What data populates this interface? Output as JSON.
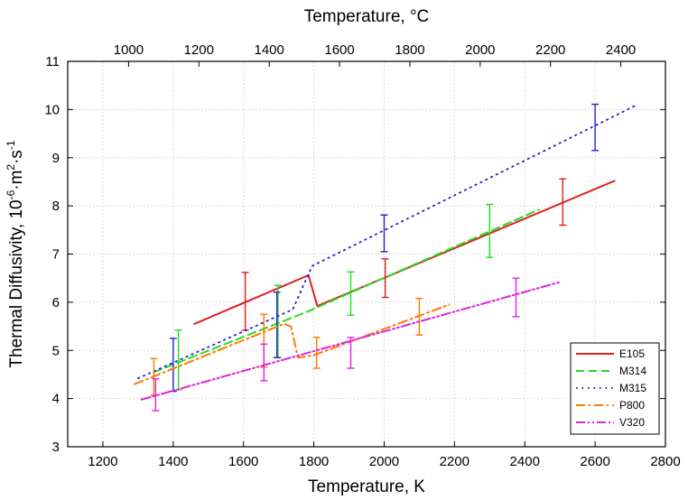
{
  "chart_data": {
    "type": "line",
    "xlabel": "Temperature, K",
    "x2label": "Temperature, °C",
    "ylabel_parts": [
      "Thermal Diffusivity, 10",
      "-6",
      "·m",
      "2",
      "·s",
      "-1"
    ],
    "xlim": [
      1100,
      2800
    ],
    "ylim": [
      3,
      11
    ],
    "x_ticks": [
      1200,
      1400,
      1600,
      1800,
      2000,
      2200,
      2400,
      2600,
      2800
    ],
    "y_ticks": [
      3,
      4,
      5,
      6,
      7,
      8,
      9,
      10,
      11
    ],
    "x2_ticks": [
      1000,
      1200,
      1400,
      1600,
      1800,
      2000,
      2200,
      2400
    ],
    "x2_offset_kelvin": 273.15,
    "grid": true,
    "legend_position": "bottom-right",
    "series": [
      {
        "name": "E105",
        "color": "#e02020",
        "dash": "solid",
        "points": [
          [
            1460,
            5.55
          ],
          [
            1785,
            6.56
          ],
          [
            1810,
            5.92
          ],
          [
            2655,
            8.52
          ]
        ],
        "errorbars": [
          [
            1605,
            6.02,
            0.6
          ],
          [
            2003,
            6.5,
            0.4
          ],
          [
            2508,
            8.08,
            0.48
          ]
        ]
      },
      {
        "name": "M314",
        "color": "#22dd22",
        "dash": "dashed",
        "points": [
          [
            1345,
            4.55
          ],
          [
            1780,
            5.8
          ],
          [
            2440,
            7.92
          ]
        ],
        "errorbars": [
          [
            1415,
            4.8,
            0.62
          ],
          [
            1698,
            5.6,
            0.75
          ],
          [
            1905,
            6.18,
            0.45
          ],
          [
            2300,
            7.48,
            0.55
          ]
        ]
      },
      {
        "name": "M315",
        "color": "#2222cc",
        "dash": "dotted",
        "points": [
          [
            1300,
            4.42
          ],
          [
            1740,
            5.85
          ],
          [
            1795,
            6.75
          ],
          [
            2720,
            10.1
          ]
        ],
        "errorbars": [
          [
            1400,
            4.7,
            0.55
          ],
          [
            1695,
            5.53,
            0.68
          ],
          [
            2000,
            7.43,
            0.38
          ],
          [
            2600,
            9.63,
            0.48
          ]
        ]
      },
      {
        "name": "P800",
        "color": "#ff7700",
        "dash": "dash-dot",
        "points": [
          [
            1290,
            4.3
          ],
          [
            1715,
            5.55
          ],
          [
            1735,
            5.5
          ],
          [
            1755,
            4.85
          ],
          [
            1800,
            4.9
          ],
          [
            2185,
            5.95
          ]
        ],
        "errorbars": [
          [
            1345,
            4.45,
            0.38
          ],
          [
            1658,
            5.2,
            0.55
          ],
          [
            1808,
            4.95,
            0.32
          ],
          [
            2100,
            5.7,
            0.38
          ]
        ]
      },
      {
        "name": "V320",
        "color": "#dd22dd",
        "dash": "dash-dot-dot",
        "points": [
          [
            1310,
            3.98
          ],
          [
            2500,
            6.42
          ]
        ],
        "errorbars": [
          [
            1350,
            4.08,
            0.33
          ],
          [
            1658,
            4.75,
            0.38
          ],
          [
            1905,
            4.95,
            0.32
          ],
          [
            2375,
            6.1,
            0.4
          ]
        ]
      }
    ]
  }
}
